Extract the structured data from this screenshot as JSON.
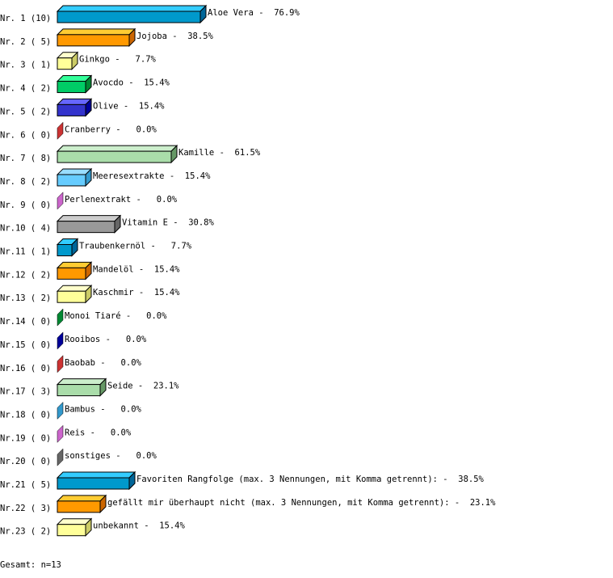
{
  "chart_data": {
    "type": "bar",
    "orientation": "horizontal",
    "style": "3d",
    "xlim": [
      0,
      100
    ],
    "grid": false,
    "categories": [
      "Aloe Vera",
      "Jojoba",
      "Ginkgo",
      "Avocdo",
      "Olive",
      "Cranberry",
      "Kamille",
      "Meeresextrakte",
      "Perlenextrakt",
      "Vitamin E",
      "Traubenkernöl",
      "Mandelöl",
      "Kaschmir",
      "Monoi Tiaré",
      "Rooibos",
      "Baobab",
      "Seide",
      "Bambus",
      "Reis",
      "sonstiges",
      "Favoriten Rangfolge (max. 3 Nennungen, mit Komma getrennt):",
      "gefällt mir überhaupt nicht (max. 3 Nennungen, mit Komma getrennt):",
      "unbekannt"
    ],
    "row_labels": [
      "Nr. 1 (10)",
      "Nr. 2 ( 5)",
      "Nr. 3 ( 1)",
      "Nr. 4 ( 2)",
      "Nr. 5 ( 2)",
      "Nr. 6 ( 0)",
      "Nr. 7 ( 8)",
      "Nr. 8 ( 2)",
      "Nr. 9 ( 0)",
      "Nr.10 ( 4)",
      "Nr.11 ( 1)",
      "Nr.12 ( 2)",
      "Nr.13 ( 2)",
      "Nr.14 ( 0)",
      "Nr.15 ( 0)",
      "Nr.16 ( 0)",
      "Nr.17 ( 3)",
      "Nr.18 ( 0)",
      "Nr.19 ( 0)",
      "Nr.20 ( 0)",
      "Nr.21 ( 5)",
      "Nr.22 ( 3)",
      "Nr.23 ( 2)"
    ],
    "counts": [
      10,
      5,
      1,
      2,
      2,
      0,
      8,
      2,
      0,
      4,
      1,
      2,
      2,
      0,
      0,
      0,
      3,
      0,
      0,
      0,
      5,
      3,
      2
    ],
    "values": [
      76.9,
      38.5,
      7.7,
      15.4,
      15.4,
      0.0,
      61.5,
      15.4,
      0.0,
      30.8,
      7.7,
      15.4,
      15.4,
      0.0,
      0.0,
      0.0,
      23.1,
      0.0,
      0.0,
      0.0,
      38.5,
      23.1,
      15.4
    ],
    "value_labels": [
      " 76.9%",
      " 38.5%",
      "  7.7%",
      " 15.4%",
      " 15.4%",
      "  0.0%",
      " 61.5%",
      " 15.4%",
      "  0.0%",
      " 30.8%",
      "  7.7%",
      " 15.4%",
      " 15.4%",
      "  0.0%",
      "  0.0%",
      "  0.0%",
      " 23.1%",
      "  0.0%",
      "  0.0%",
      "  0.0%",
      " 38.5%",
      " 23.1%",
      " 15.4%"
    ],
    "palette": [
      {
        "front": "#0099cc",
        "top": "#33ccff",
        "side": "#006699"
      },
      {
        "front": "#ff9900",
        "top": "#ffcc33",
        "side": "#cc6600"
      },
      {
        "front": "#ffff99",
        "top": "#ffffcc",
        "side": "#cccc66"
      },
      {
        "front": "#00cc66",
        "top": "#33ff99",
        "side": "#008833"
      },
      {
        "front": "#3333cc",
        "top": "#6666ff",
        "side": "#000099"
      },
      {
        "front": "#cc3333",
        "top": "#ff6666",
        "side": "#cc3333"
      },
      {
        "front": "#aaddaa",
        "top": "#cceecc",
        "side": "#669966"
      },
      {
        "front": "#66ccff",
        "top": "#99ddff",
        "side": "#3399cc"
      },
      {
        "front": "#cc66cc",
        "top": "#ee99ee",
        "side": "#cc66cc"
      },
      {
        "front": "#999999",
        "top": "#cccccc",
        "side": "#666666"
      }
    ],
    "footer": "Gesamt: n=13"
  }
}
